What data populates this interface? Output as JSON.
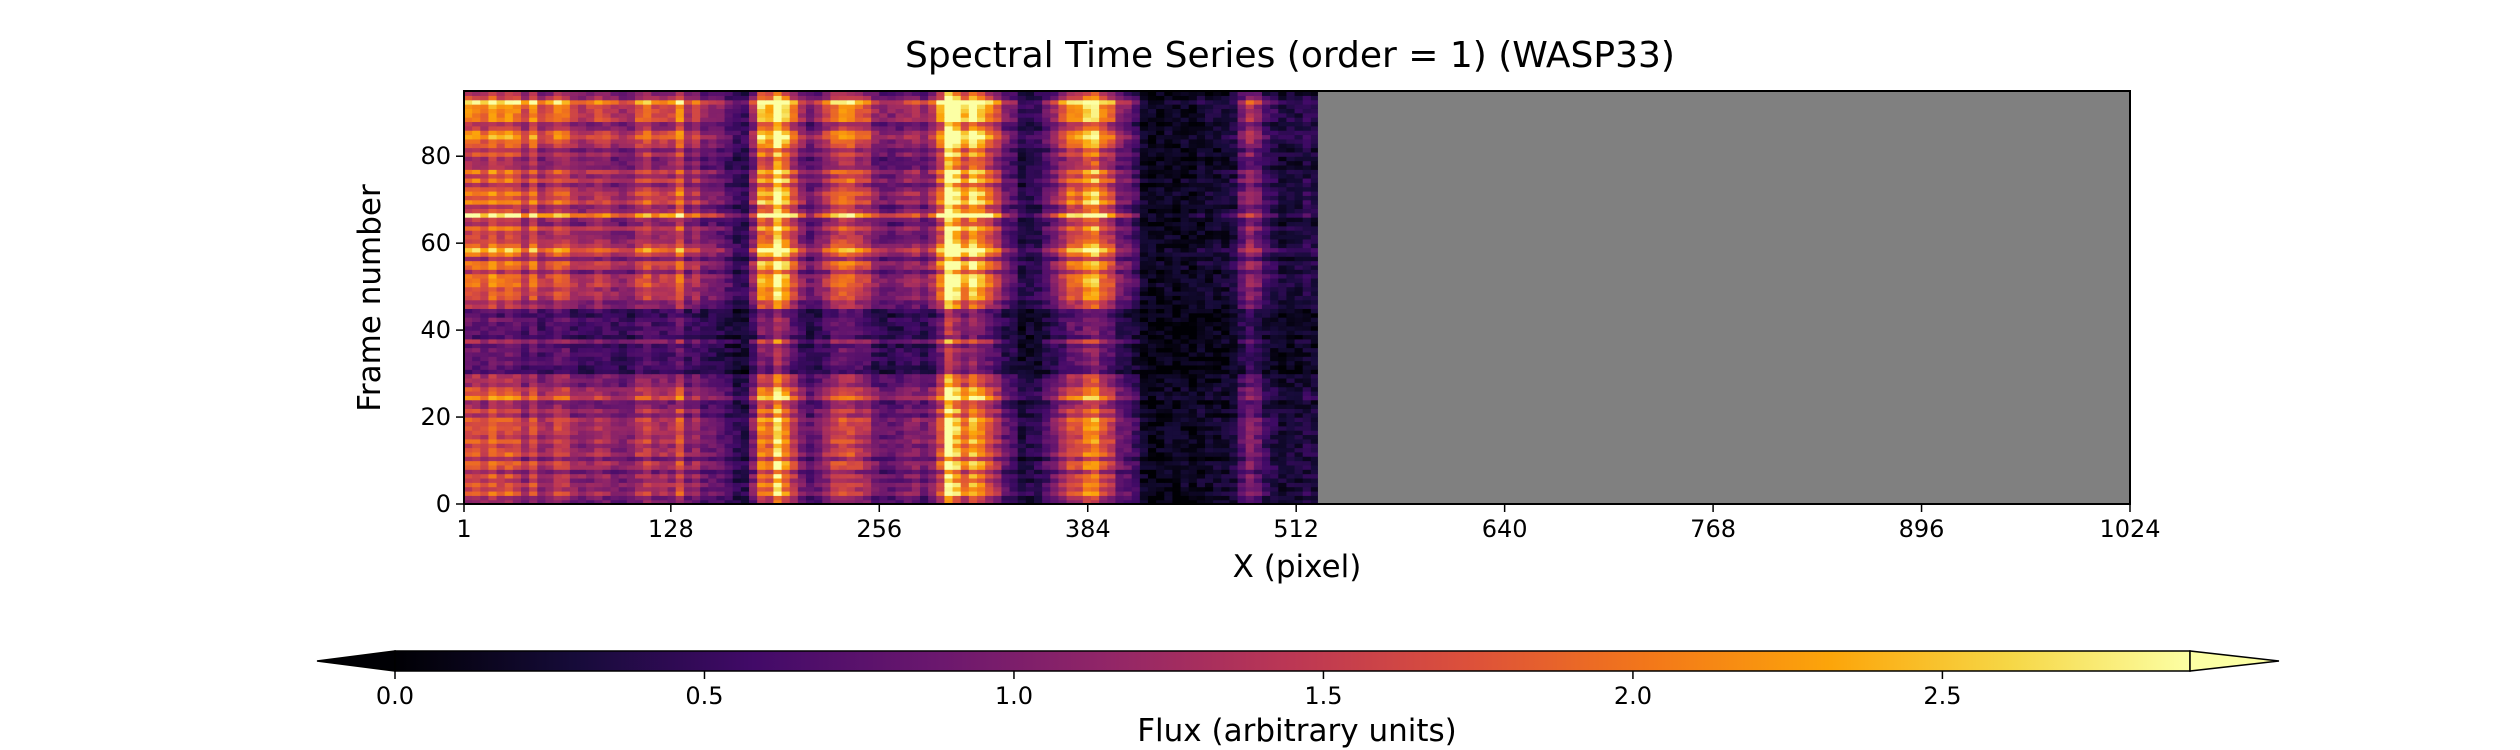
{
  "chart_data": {
    "type": "heatmap",
    "title": "Spectral Time Series (order = 1) (WASP33)",
    "xlabel": "X (pixel)",
    "ylabel": "Frame number",
    "xlim": [
      1,
      1024
    ],
    "ylim": [
      0,
      95
    ],
    "x_ticks": [
      1,
      128,
      256,
      384,
      512,
      640,
      768,
      896,
      1024
    ],
    "y_ticks": [
      0,
      20,
      40,
      60,
      80
    ],
    "x_tick_labels": [
      "1",
      "128",
      "256",
      "384",
      "512",
      "640",
      "768",
      "896",
      "1024"
    ],
    "y_tick_labels": [
      "0",
      "20",
      "40",
      "60",
      "80"
    ],
    "data_x_range": [
      1,
      525
    ],
    "no_data_x_range": [
      525,
      1024
    ],
    "no_data_color": "#808080",
    "colormap": "inferno",
    "colorbar": {
      "label": "Flux (arbitrary units)",
      "vmin": 0.0,
      "vmax": 2.9,
      "ticks": [
        0.0,
        0.5,
        1.0,
        1.5,
        2.0,
        2.5
      ],
      "tick_labels": [
        "0.0",
        "0.5",
        "1.0",
        "1.5",
        "2.0",
        "2.5"
      ],
      "extend": "both",
      "orientation": "horizontal"
    },
    "column_flux_profile": [
      {
        "x": 1,
        "flux": 1.7
      },
      {
        "x": 20,
        "flux": 1.4
      },
      {
        "x": 60,
        "flux": 1.3
      },
      {
        "x": 100,
        "flux": 1.1
      },
      {
        "x": 130,
        "flux": 1.4
      },
      {
        "x": 150,
        "flux": 0.8
      },
      {
        "x": 175,
        "flux": 0.4
      },
      {
        "x": 185,
        "flux": 1.8
      },
      {
        "x": 195,
        "flux": 2.4
      },
      {
        "x": 210,
        "flux": 0.7
      },
      {
        "x": 235,
        "flux": 1.7
      },
      {
        "x": 260,
        "flux": 0.7
      },
      {
        "x": 290,
        "flux": 1.0
      },
      {
        "x": 300,
        "flux": 2.6
      },
      {
        "x": 320,
        "flux": 1.5
      },
      {
        "x": 345,
        "flux": 0.2
      },
      {
        "x": 370,
        "flux": 1.1
      },
      {
        "x": 385,
        "flux": 1.9
      },
      {
        "x": 395,
        "flux": 1.5
      },
      {
        "x": 420,
        "flux": 0.1
      },
      {
        "x": 470,
        "flux": 0.2
      },
      {
        "x": 485,
        "flux": 0.9
      },
      {
        "x": 500,
        "flux": 0.3
      },
      {
        "x": 524,
        "flux": 0.3
      }
    ],
    "frame_modulation": [
      {
        "frame_range": [
          0,
          30
        ],
        "factor": 1.0
      },
      {
        "frame_range": [
          30,
          45
        ],
        "factor": 0.55
      },
      {
        "frame_range": [
          45,
          95
        ],
        "factor": 1.15
      }
    ],
    "bright_rows": [
      12,
      24,
      37,
      47,
      58,
      66,
      76,
      84,
      92
    ]
  }
}
